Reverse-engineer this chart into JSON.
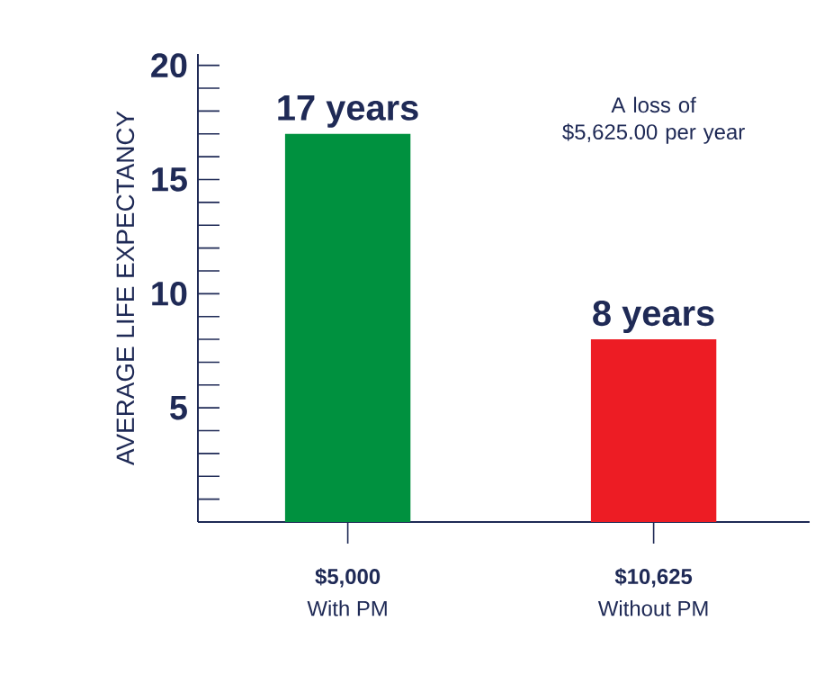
{
  "chart_data": {
    "type": "bar",
    "ylabel": "AVERAGE LIFE EXPECTANCY",
    "categories": [
      "With PM",
      "Without PM"
    ],
    "values": [
      17,
      8
    ],
    "colors": [
      "#00913f",
      "#ed1c24"
    ],
    "value_labels": [
      "17 years",
      "8 years"
    ],
    "ylim": [
      0,
      20.5
    ],
    "yticks": [
      {
        "value": 1,
        "label": null
      },
      {
        "value": 2,
        "label": null
      },
      {
        "value": 3,
        "label": null
      },
      {
        "value": 4,
        "label": null
      },
      5,
      {
        "value": 6,
        "label": null
      },
      {
        "value": 7,
        "label": null
      },
      {
        "value": 8,
        "label": null
      },
      {
        "value": 9,
        "label": null
      },
      10,
      {
        "value": 11,
        "label": null
      },
      {
        "value": 12,
        "label": null
      },
      {
        "value": 13,
        "label": null
      },
      {
        "value": 14,
        "label": null
      },
      15,
      {
        "value": 16,
        "label": null
      },
      {
        "value": 17,
        "label": null
      },
      {
        "value": 18,
        "label": null
      },
      {
        "value": 19,
        "label": null
      },
      20
    ],
    "annotations": [
      {
        "text": "$5,000",
        "x": "With PM"
      },
      {
        "text": "$10,625",
        "x": "Without PM"
      },
      "A loss of $5,625.00 per year"
    ],
    "grid": false
  }
}
